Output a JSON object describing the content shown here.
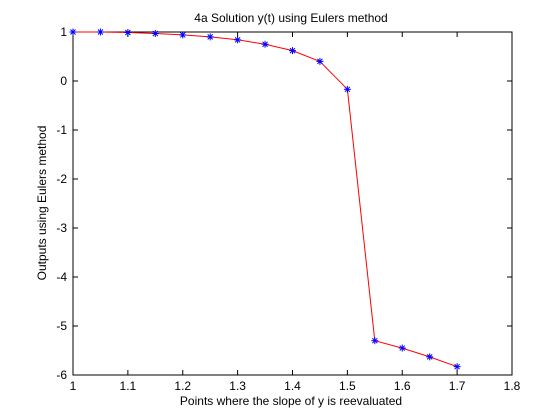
{
  "chart_data": {
    "type": "line",
    "title": "4a Solution y(t) using Eulers method",
    "xlabel": "Points where the slope of y is reevaluated",
    "ylabel": "Outputs using Eulers method",
    "xlim": [
      1,
      1.8
    ],
    "ylim": [
      -6,
      1
    ],
    "x_ticks": [
      "1",
      "1.1",
      "1.2",
      "1.3",
      "1.4",
      "1.5",
      "1.6",
      "1.7",
      "1.8"
    ],
    "y_ticks": [
      "1",
      "0",
      "-1",
      "-2",
      "-3",
      "-4",
      "-5",
      "-6"
    ],
    "grid": false,
    "series": [
      {
        "x": [
          1.0,
          1.05,
          1.1,
          1.15,
          1.2,
          1.25,
          1.3,
          1.35,
          1.4,
          1.45,
          1.5,
          1.55,
          1.6,
          1.65,
          1.7
        ],
        "y": [
          1.0,
          1.0,
          0.99,
          0.97,
          0.94,
          0.9,
          0.84,
          0.75,
          0.62,
          0.4,
          -0.17,
          -5.3,
          -5.45,
          -5.63,
          -5.83
        ],
        "line_color": "#ff0000",
        "marker": "*",
        "marker_color": "#0000ff"
      }
    ]
  }
}
